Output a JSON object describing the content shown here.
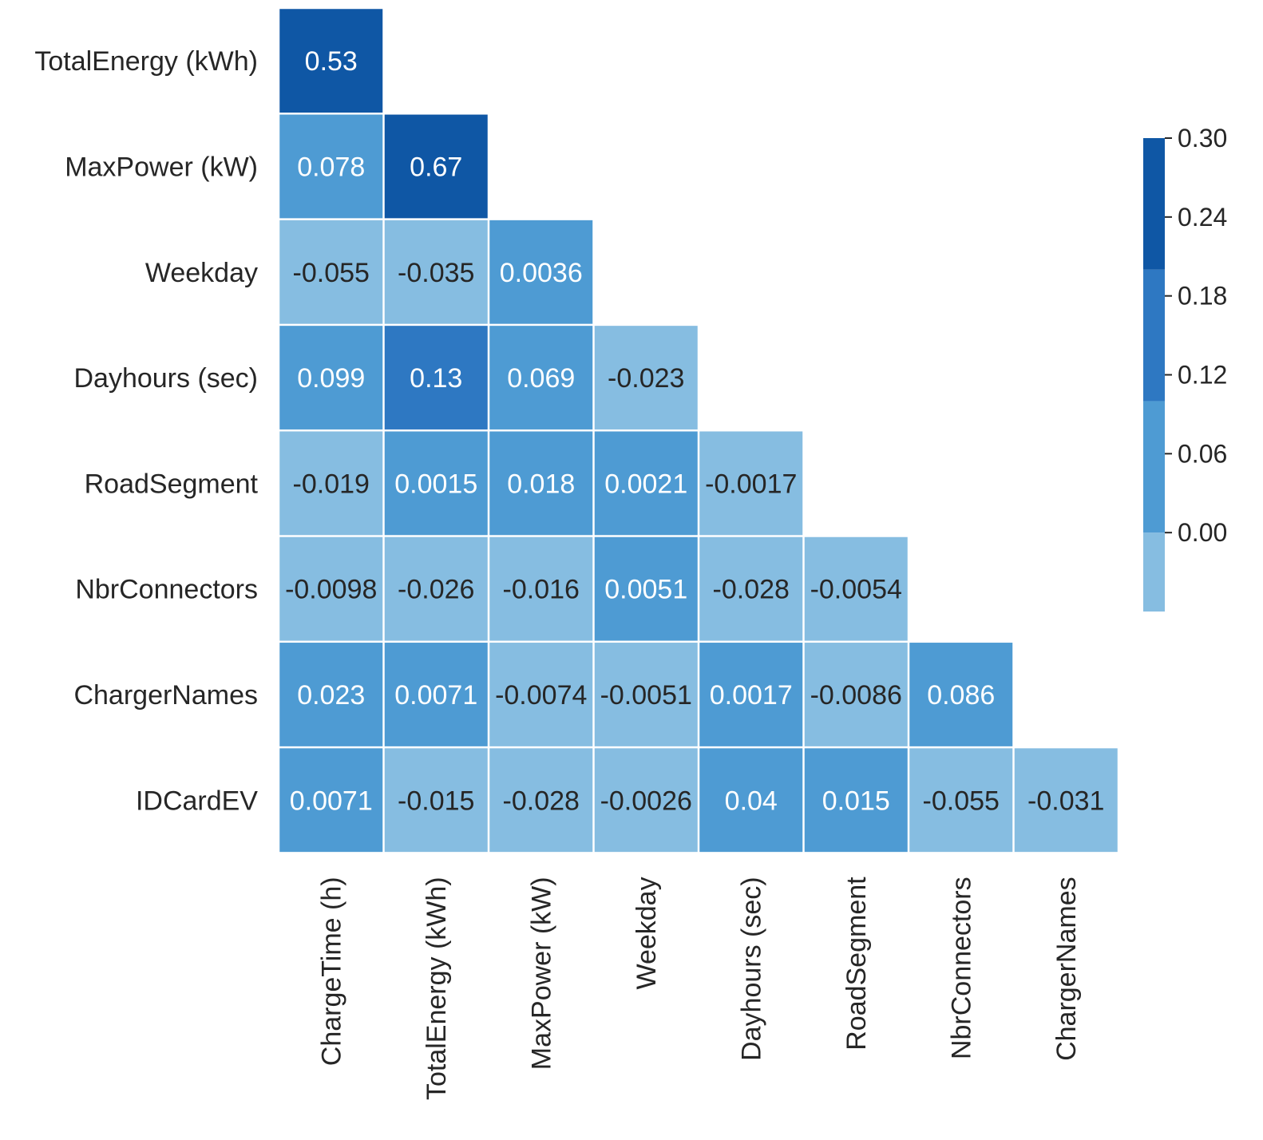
{
  "chart_data": {
    "type": "heatmap",
    "title": "",
    "xlabel": "",
    "ylabel": "",
    "mask": "lower-triangle",
    "row_labels": [
      "TotalEnergy (kWh)",
      "MaxPower (kW)",
      "Weekday",
      "Dayhours (sec)",
      "RoadSegment",
      "NbrConnectors",
      "ChargerNames",
      "IDCardEV"
    ],
    "col_labels": [
      "ChargeTime (h)",
      "TotalEnergy (kWh)",
      "MaxPower (kW)",
      "Weekday",
      "Dayhours (sec)",
      "RoadSegment",
      "NbrConnectors",
      "ChargerNames"
    ],
    "values": [
      [
        0.53
      ],
      [
        0.078,
        0.67
      ],
      [
        -0.055,
        -0.035,
        0.0036
      ],
      [
        0.099,
        0.13,
        0.069,
        -0.023
      ],
      [
        -0.019,
        0.0015,
        0.018,
        0.0021,
        -0.0017
      ],
      [
        -0.0098,
        -0.026,
        -0.016,
        0.0051,
        -0.028,
        -0.0054
      ],
      [
        0.023,
        0.0071,
        -0.0074,
        -0.0051,
        0.0017,
        -0.0086,
        0.086
      ],
      [
        0.0071,
        -0.015,
        -0.028,
        -0.0026,
        0.04,
        0.015,
        -0.055,
        -0.031
      ]
    ],
    "labels": [
      [
        "0.53"
      ],
      [
        "0.078",
        "0.67"
      ],
      [
        "-0.055",
        "-0.035",
        "0.0036"
      ],
      [
        "0.099",
        "0.13",
        "0.069",
        "-0.023"
      ],
      [
        "-0.019",
        "0.0015",
        "0.018",
        "0.0021",
        "-0.0017"
      ],
      [
        "-0.0098",
        "-0.026",
        "-0.016",
        "0.0051",
        "-0.028",
        "-0.0054"
      ],
      [
        "0.023",
        "0.0071",
        "-0.0074",
        "-0.0051",
        "0.0017",
        "-0.0086",
        "0.086"
      ],
      [
        "0.0071",
        "-0.015",
        "-0.028",
        "-0.0026",
        "0.04",
        "0.015",
        "-0.055",
        "-0.031"
      ]
    ],
    "colorbar": {
      "range": [
        -0.06,
        0.3
      ],
      "ticks": [
        0.3,
        0.24,
        0.18,
        0.12,
        0.06,
        0.0
      ],
      "tick_labels": [
        "0.30",
        "0.24",
        "0.18",
        "0.12",
        "0.06",
        "0.00"
      ],
      "bins": [
        {
          "from": -0.06,
          "to": 0.0,
          "color": "#86bde1"
        },
        {
          "from": 0.0,
          "to": 0.1,
          "color": "#4e9bd3"
        },
        {
          "from": 0.1,
          "to": 0.2,
          "color": "#2e78c2"
        },
        {
          "from": 0.2,
          "to": 0.3,
          "color": "#0f57a5"
        }
      ],
      "colors": [
        "#86bde1",
        "#4e9bd3",
        "#2e78c2",
        "#0f57a5"
      ]
    },
    "text_colors": {
      "light": "#ffffff",
      "dark": "#262626"
    }
  }
}
